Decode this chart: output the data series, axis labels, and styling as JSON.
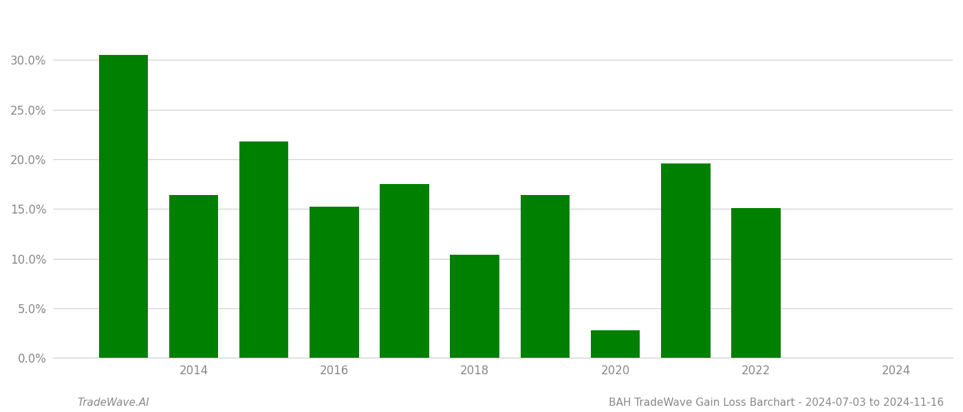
{
  "years": [
    2013,
    2014,
    2015,
    2016,
    2017,
    2018,
    2019,
    2020,
    2021,
    2022
  ],
  "values": [
    0.305,
    0.164,
    0.218,
    0.152,
    0.175,
    0.104,
    0.164,
    0.028,
    0.196,
    0.151
  ],
  "bar_color": "#008000",
  "background_color": "#ffffff",
  "ylim": [
    0,
    0.35
  ],
  "yticks": [
    0.0,
    0.05,
    0.1,
    0.15,
    0.2,
    0.25,
    0.3
  ],
  "xtick_labels": [
    "2014",
    "2016",
    "2018",
    "2020",
    "2022",
    "2024"
  ],
  "xtick_positions": [
    2014,
    2016,
    2018,
    2020,
    2022,
    2024
  ],
  "xlim_left": 2012.0,
  "xlim_right": 2024.8,
  "bar_width": 0.7,
  "footer_left": "TradeWave.AI",
  "footer_right": "BAH TradeWave Gain Loss Barchart - 2024-07-03 to 2024-11-16",
  "grid_color": "#cccccc",
  "tick_label_color": "#888888",
  "footer_color": "#888888",
  "footer_fontsize": 11,
  "tick_fontsize": 12
}
